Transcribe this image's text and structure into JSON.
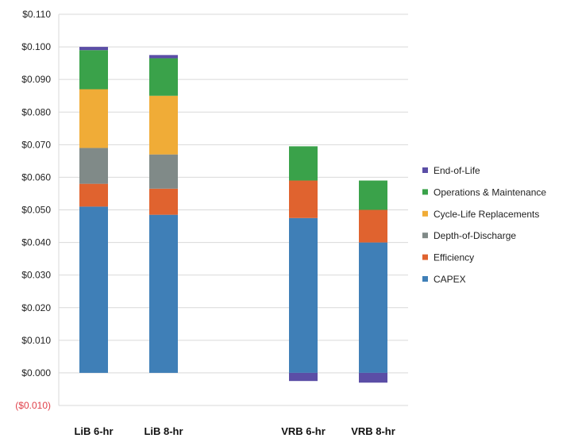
{
  "chart_data": {
    "type": "bar",
    "stacked": true,
    "title": "",
    "xlabel": "",
    "ylabel": "",
    "categories": [
      "LiB 6-hr",
      "LiB 8-hr",
      "",
      "VRB 6-hr",
      "VRB 8-hr"
    ],
    "ylim": [
      -0.01,
      0.11
    ],
    "yticks": [
      "($0.010)",
      "$0.000",
      "$0.010",
      "$0.020",
      "$0.030",
      "$0.040",
      "$0.050",
      "$0.060",
      "$0.070",
      "$0.080",
      "$0.090",
      "$0.100",
      "$0.110"
    ],
    "grid": true,
    "legend_position": "right",
    "series": [
      {
        "name": "CAPEX",
        "color": "#3f7fb7",
        "values": [
          0.051,
          0.0485,
          null,
          0.0475,
          0.04
        ]
      },
      {
        "name": "Efficiency",
        "color": "#e0632f",
        "values": [
          0.007,
          0.008,
          null,
          0.0115,
          0.01
        ]
      },
      {
        "name": "Depth-of-Discharge",
        "color": "#808a88",
        "values": [
          0.011,
          0.0105,
          null,
          0.0,
          0.0
        ]
      },
      {
        "name": "Cycle-Life Replacements",
        "color": "#f0ac37",
        "values": [
          0.018,
          0.018,
          null,
          0.0,
          0.0
        ]
      },
      {
        "name": "Operations & Maintenance",
        "color": "#3aa24a",
        "values": [
          0.012,
          0.0115,
          null,
          0.0105,
          0.009
        ]
      },
      {
        "name": "End-of-Life",
        "color": "#5b4ea6",
        "values": [
          0.001,
          0.001,
          null,
          -0.0025,
          -0.003
        ]
      }
    ]
  }
}
